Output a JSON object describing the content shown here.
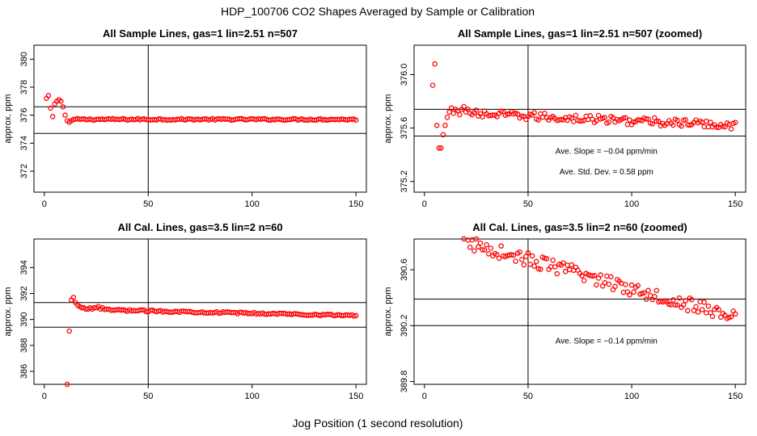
{
  "figure": {
    "title": "HDP_100706  CO2 Shapes Averaged by Sample or Calibration",
    "xlabel": "Jog Position (1 second resolution)"
  },
  "chart_data": [
    {
      "type": "scatter",
      "title": "All Sample Lines, gas=1 lin=2.51 n=507",
      "ylabel": "approx. ppm",
      "xlim": [
        -5,
        155
      ],
      "ylim": [
        370.5,
        381
      ],
      "xticks": [
        0,
        50,
        100,
        150
      ],
      "yticks": [
        372,
        374,
        376,
        378,
        380
      ],
      "hlines": [
        376.6,
        374.7
      ],
      "vlines": [
        50
      ],
      "marker_color": "#ff0000",
      "series": [
        {
          "x_range": [
            1,
            150
          ],
          "head": [
            377.2,
            377.4,
            376.5,
            375.9,
            376.8,
            377.0,
            377.1,
            377.0,
            376.6,
            376.0,
            375.6,
            375.5,
            375.6,
            375.7
          ],
          "tail_level": 375.7,
          "tail_noise": 0.06
        }
      ]
    },
    {
      "type": "scatter",
      "title": "All Sample Lines, gas=1 lin=2.51 n=507 (zoomed)",
      "ylabel": "approx. ppm",
      "xlim": [
        -5,
        155
      ],
      "ylim": [
        375.12,
        376.22
      ],
      "xticks": [
        0,
        50,
        100,
        150
      ],
      "yticks": [
        375.2,
        375.6,
        376.0
      ],
      "hlines": [
        375.74,
        375.54
      ],
      "vlines": [
        50
      ],
      "marker_color": "#ff0000",
      "annotations": [
        "Ave. Slope =  −0.04  ppm/min",
        "Ave. Std. Dev. =  0.58  ppm"
      ],
      "series": [
        {
          "x_range": [
            4,
            150
          ],
          "head": [
            375.92,
            376.08,
            375.62,
            375.45,
            375.45,
            375.55,
            375.62,
            375.68,
            375.72,
            375.75,
            375.71,
            375.74,
            375.73,
            375.7,
            375.74,
            375.76,
            375.72,
            375.74,
            375.71,
            375.7
          ],
          "trend_start": 375.72,
          "trend_end": 375.62,
          "noise": 0.03
        }
      ]
    },
    {
      "type": "scatter",
      "title": "All Cal. Lines, gas=3.5 lin=2 n=60",
      "ylabel": "approx. ppm",
      "xlim": [
        -5,
        155
      ],
      "ylim": [
        385,
        396.2
      ],
      "xticks": [
        0,
        50,
        100,
        150
      ],
      "yticks": [
        386,
        388,
        390,
        392,
        394
      ],
      "hlines": [
        391.3,
        389.4
      ],
      "vlines": [
        50
      ],
      "marker_color": "#ff0000",
      "series": [
        {
          "x_range": [
            11,
            150
          ],
          "head": [
            385.0,
            389.1,
            391.5,
            391.7,
            391.3,
            391.1,
            391.0,
            390.9,
            390.9,
            390.8,
            390.8,
            390.9,
            390.8,
            390.9,
            390.9,
            391.0,
            390.8,
            390.9
          ],
          "trend_start": 390.8,
          "trend_end": 390.3,
          "noise": 0.07
        }
      ]
    },
    {
      "type": "scatter",
      "title": "All Cal. Lines, gas=3.5 lin=2 n=60 (zoomed)",
      "ylabel": "approx. ppm",
      "xlim": [
        -5,
        155
      ],
      "ylim": [
        389.78,
        390.82
      ],
      "xticks": [
        0,
        50,
        100,
        150
      ],
      "yticks": [
        389.8,
        390.2,
        390.6
      ],
      "hlines": [
        390.39,
        390.2
      ],
      "vlines": [
        50
      ],
      "marker_color": "#ff0000",
      "annotations": [
        "Ave. Slope =  −0.14  ppm/min"
      ],
      "series": [
        {
          "x_range": [
            19,
            150
          ],
          "trend_start": 390.8,
          "trend_end": 390.26,
          "noise": 0.05
        }
      ]
    }
  ]
}
